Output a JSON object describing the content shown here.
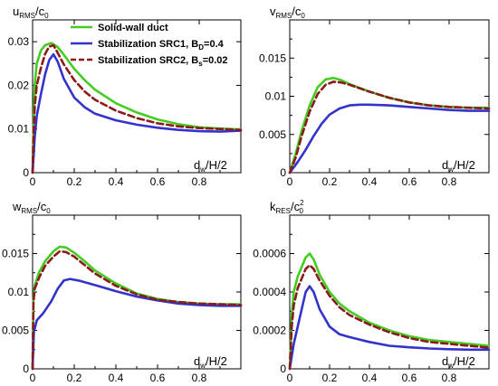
{
  "colors": {
    "solid_wall": "#44cc22",
    "src1": "#3333cc",
    "src2": "#8b1a1a"
  },
  "legend": {
    "entries": [
      {
        "series": "solid",
        "label": "Solid-wall duct"
      },
      {
        "series": "src1",
        "label": "Stabilization SRC1, B",
        "sub": "D",
        "tail": "=0.4"
      },
      {
        "series": "src2",
        "label": "Stabilization SRC2, B",
        "sub": "s",
        "tail": "=0.02"
      }
    ]
  },
  "chart_data": [
    {
      "type": "line",
      "panel": "u",
      "ylabel": {
        "main": "u",
        "sub": "RMS",
        "rest": "/c",
        "sub2": "0"
      },
      "xlabel": {
        "main": "d",
        "sub": "w",
        "rest": "/H/2"
      },
      "xlim": [
        0,
        1.0
      ],
      "ylim": [
        0,
        0.035
      ],
      "xticks": [
        0,
        0.2,
        0.4,
        0.6,
        0.8
      ],
      "xticklabels": [
        "0",
        "0.2",
        "0.4",
        "0.6",
        "0.8"
      ],
      "yticks": [
        0,
        0.01,
        0.02,
        0.03
      ],
      "yticklabels": [
        "0",
        "0.01",
        "0.02",
        "0.03"
      ],
      "series": [
        {
          "key": "solid",
          "style": "solid",
          "x": [
            0,
            0.005,
            0.01,
            0.02,
            0.04,
            0.06,
            0.09,
            0.12,
            0.15,
            0.2,
            0.25,
            0.3,
            0.4,
            0.5,
            0.6,
            0.7,
            0.8,
            0.9,
            1.0
          ],
          "y": [
            0,
            0.012,
            0.02,
            0.025,
            0.028,
            0.0292,
            0.0297,
            0.0288,
            0.027,
            0.0238,
            0.0212,
            0.019,
            0.0159,
            0.0138,
            0.0122,
            0.0111,
            0.0104,
            0.0101,
            0.0099
          ]
        },
        {
          "key": "src1",
          "style": "solid",
          "x": [
            0,
            0.01,
            0.02,
            0.04,
            0.06,
            0.08,
            0.1,
            0.12,
            0.15,
            0.2,
            0.25,
            0.3,
            0.4,
            0.5,
            0.6,
            0.7,
            0.8,
            0.9,
            1.0
          ],
          "y": [
            0,
            0.008,
            0.013,
            0.018,
            0.0225,
            0.0258,
            0.0271,
            0.0255,
            0.0215,
            0.0172,
            0.015,
            0.0135,
            0.012,
            0.011,
            0.0103,
            0.0098,
            0.0095,
            0.0094,
            0.0096
          ]
        },
        {
          "key": "src2",
          "style": "dashed",
          "x": [
            0,
            0.005,
            0.01,
            0.02,
            0.04,
            0.06,
            0.08,
            0.1,
            0.12,
            0.15,
            0.2,
            0.25,
            0.3,
            0.4,
            0.5,
            0.6,
            0.7,
            0.8,
            0.9,
            1.0
          ],
          "y": [
            0,
            0.009,
            0.015,
            0.02,
            0.024,
            0.0272,
            0.0289,
            0.0292,
            0.0275,
            0.0248,
            0.0212,
            0.0186,
            0.0167,
            0.0142,
            0.0125,
            0.0113,
            0.0106,
            0.0102,
            0.01,
            0.0098
          ]
        }
      ]
    },
    {
      "type": "line",
      "panel": "v",
      "ylabel": {
        "main": "v",
        "sub": "RMS",
        "rest": "/c",
        "sub2": "0"
      },
      "xlabel": {
        "main": "d",
        "sub": "w",
        "rest": "/H/2"
      },
      "xlim": [
        0,
        1.0
      ],
      "ylim": [
        0,
        0.02
      ],
      "xticks": [
        0,
        0.2,
        0.4,
        0.6,
        0.8
      ],
      "xticklabels": [
        "0",
        "0.2",
        "0.4",
        "0.6",
        "0.8"
      ],
      "yticks": [
        0,
        0.005,
        0.01,
        0.015
      ],
      "yticklabels": [
        "0",
        "0.005",
        "0.01",
        "0.015"
      ],
      "series": [
        {
          "key": "solid",
          "style": "solid",
          "x": [
            0,
            0.03,
            0.06,
            0.1,
            0.14,
            0.18,
            0.22,
            0.26,
            0.3,
            0.4,
            0.5,
            0.6,
            0.7,
            0.8,
            0.9,
            1.0
          ],
          "y": [
            0,
            0.0025,
            0.0055,
            0.0088,
            0.0112,
            0.0122,
            0.0124,
            0.0121,
            0.0116,
            0.0106,
            0.0098,
            0.0092,
            0.0088,
            0.0086,
            0.0085,
            0.0085
          ]
        },
        {
          "key": "src1",
          "style": "solid",
          "x": [
            0,
            0.04,
            0.08,
            0.12,
            0.16,
            0.2,
            0.25,
            0.3,
            0.35,
            0.4,
            0.5,
            0.6,
            0.7,
            0.8,
            0.9,
            1.0
          ],
          "y": [
            0,
            0.0014,
            0.003,
            0.0048,
            0.0064,
            0.0076,
            0.0084,
            0.0088,
            0.0089,
            0.0089,
            0.0088,
            0.0086,
            0.0084,
            0.0082,
            0.0081,
            0.0081
          ]
        },
        {
          "key": "src2",
          "style": "dashed",
          "x": [
            0,
            0.03,
            0.06,
            0.1,
            0.14,
            0.18,
            0.22,
            0.26,
            0.3,
            0.4,
            0.5,
            0.6,
            0.7,
            0.8,
            0.9,
            1.0
          ],
          "y": [
            0,
            0.002,
            0.0048,
            0.008,
            0.0103,
            0.0115,
            0.0119,
            0.0118,
            0.0115,
            0.0106,
            0.0098,
            0.0092,
            0.0088,
            0.0086,
            0.0085,
            0.0084
          ]
        }
      ]
    },
    {
      "type": "line",
      "panel": "w",
      "ylabel": {
        "main": "w",
        "sub": "RMS",
        "rest": "/c",
        "sub2": "0"
      },
      "xlabel": {
        "main": "d",
        "sub": "w",
        "rest": "/H/2"
      },
      "xlim": [
        0,
        1.0
      ],
      "ylim": [
        0,
        0.02
      ],
      "xticks": [
        0,
        0.2,
        0.4,
        0.6,
        0.8
      ],
      "xticklabels": [
        "0",
        "0.2",
        "0.4",
        "0.6",
        "0.8"
      ],
      "yticks": [
        0,
        0.005,
        0.01,
        0.015
      ],
      "yticklabels": [
        "0",
        "0.005",
        "0.01",
        "0.015"
      ],
      "series": [
        {
          "key": "solid",
          "style": "solid",
          "x": [
            0,
            0.004,
            0.01,
            0.03,
            0.06,
            0.1,
            0.13,
            0.16,
            0.2,
            0.25,
            0.3,
            0.4,
            0.5,
            0.6,
            0.7,
            0.8,
            0.9,
            1.0
          ],
          "y": [
            0,
            0.009,
            0.0108,
            0.0125,
            0.014,
            0.0153,
            0.0159,
            0.0158,
            0.0151,
            0.014,
            0.0128,
            0.0111,
            0.0098,
            0.0091,
            0.0087,
            0.0085,
            0.0084,
            0.0084
          ]
        },
        {
          "key": "src1",
          "style": "solid",
          "x": [
            0,
            0.006,
            0.02,
            0.05,
            0.09,
            0.12,
            0.15,
            0.18,
            0.22,
            0.3,
            0.4,
            0.5,
            0.6,
            0.7,
            0.8,
            0.9,
            1.0
          ],
          "y": [
            0,
            0.0048,
            0.0063,
            0.0072,
            0.0088,
            0.0104,
            0.0115,
            0.0117,
            0.0115,
            0.0109,
            0.0101,
            0.0094,
            0.0089,
            0.0085,
            0.0083,
            0.0082,
            0.0082
          ]
        },
        {
          "key": "src2",
          "style": "dashed",
          "x": [
            0,
            0.004,
            0.01,
            0.03,
            0.06,
            0.1,
            0.13,
            0.16,
            0.2,
            0.25,
            0.3,
            0.4,
            0.5,
            0.6,
            0.7,
            0.8,
            0.9,
            1.0
          ],
          "y": [
            0,
            0.0085,
            0.0104,
            0.0118,
            0.0134,
            0.0146,
            0.0153,
            0.0152,
            0.0146,
            0.0135,
            0.0124,
            0.0108,
            0.0097,
            0.009,
            0.0087,
            0.0085,
            0.0084,
            0.0083
          ]
        }
      ]
    },
    {
      "type": "line",
      "panel": "k",
      "ylabel": {
        "main": "k",
        "sub": "RES",
        "rest": "/c",
        "sub2": "0",
        "sup": "2"
      },
      "xlabel": {
        "main": "d",
        "sub": "w",
        "rest": "/H/2"
      },
      "xlim": [
        0,
        1.0
      ],
      "ylim": [
        0,
        0.0008
      ],
      "xticks": [
        0,
        0.2,
        0.4,
        0.6,
        0.8
      ],
      "xticklabels": [
        "0",
        "0.2",
        "0.4",
        "0.6",
        "0.8"
      ],
      "yticks": [
        0,
        0.0002,
        0.0004,
        0.0006
      ],
      "yticklabels": [
        "0",
        "0.0002",
        "0.0004",
        "0.0006"
      ],
      "series": [
        {
          "key": "solid",
          "style": "solid",
          "x": [
            0,
            0.01,
            0.02,
            0.04,
            0.06,
            0.08,
            0.1,
            0.12,
            0.15,
            0.2,
            0.25,
            0.3,
            0.4,
            0.5,
            0.6,
            0.7,
            0.8,
            0.9,
            1.0
          ],
          "y": [
            0,
            0.00028,
            0.0004,
            0.00048,
            0.00053,
            0.00058,
            0.0006,
            0.00057,
            0.00049,
            0.0004,
            0.00034,
            0.0003,
            0.00024,
            0.0002,
            0.00017,
            0.00015,
            0.00014,
            0.00013,
            0.00012
          ]
        },
        {
          "key": "src1",
          "style": "solid",
          "x": [
            0,
            0.02,
            0.04,
            0.06,
            0.08,
            0.1,
            0.12,
            0.15,
            0.2,
            0.25,
            0.3,
            0.4,
            0.5,
            0.6,
            0.7,
            0.8,
            0.9,
            1.0
          ],
          "y": [
            0,
            0.00013,
            0.00022,
            0.00031,
            0.0004,
            0.00043,
            0.0004,
            0.00031,
            0.00022,
            0.00018,
            0.000165,
            0.00014,
            0.00012,
            0.000112,
            0.000106,
            0.000102,
            0.0001,
            0.0001
          ]
        },
        {
          "key": "src2",
          "style": "dashed",
          "x": [
            0,
            0.01,
            0.02,
            0.04,
            0.06,
            0.08,
            0.1,
            0.12,
            0.15,
            0.2,
            0.25,
            0.3,
            0.4,
            0.5,
            0.6,
            0.7,
            0.8,
            0.9,
            1.0
          ],
          "y": [
            0,
            0.00022,
            0.00033,
            0.00042,
            0.00047,
            0.00052,
            0.00054,
            0.00052,
            0.00046,
            0.00038,
            0.00032,
            0.00028,
            0.00023,
            0.00019,
            0.00016,
            0.00014,
            0.00013,
            0.00012,
            0.00011
          ]
        }
      ]
    }
  ]
}
